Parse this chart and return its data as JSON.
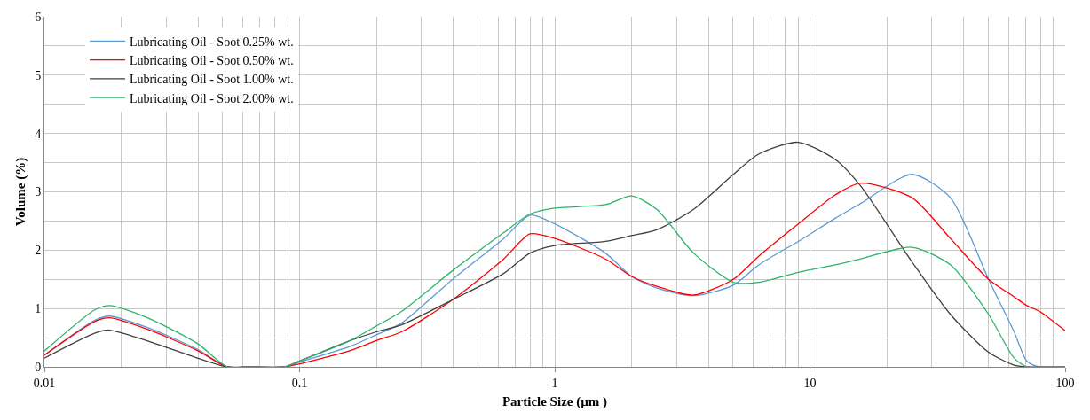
{
  "chart_data": {
    "type": "line",
    "xlabel": "Particle Size (µm )",
    "ylabel": "Volume (%)",
    "log": "x",
    "grid": true,
    "legend": "top left",
    "marker": "none",
    "line_style": "solid",
    "x": [
      0.01,
      0.0158,
      0.018,
      0.0251,
      0.0398,
      0.052,
      0.0631,
      0.087,
      0.1,
      0.158,
      0.2,
      0.251,
      0.398,
      0.631,
      0.8,
      1,
      1.58,
      2,
      2.51,
      3.5,
      5.01,
      6.31,
      9,
      12.6,
      15.8,
      25.1,
      35.5,
      50.1,
      63.1,
      70.8,
      79.4,
      100
    ],
    "xlim": [
      0.01,
      100
    ],
    "xticks": [
      0.01,
      0.1,
      1,
      10,
      100
    ],
    "ylim": [
      0,
      6
    ],
    "yticks": [
      0,
      {
        "value": 0.5,
        "label": null
      },
      1,
      {
        "value": 1.5,
        "label": null
      },
      2,
      {
        "value": 2.5,
        "label": null
      },
      3,
      {
        "value": 3.5,
        "label": null
      },
      4,
      {
        "value": 4.5,
        "label": null
      },
      5,
      {
        "value": 5.5,
        "label": null
      },
      6
    ],
    "series": [
      {
        "name": "Lubricating Oil - Soot 0.25% wt.",
        "color": "#5b9bd5",
        "values": [
          0.2,
          0.8,
          0.87,
          0.68,
          0.3,
          0,
          0,
          0,
          0.08,
          0.35,
          0.55,
          0.75,
          1.5,
          2.2,
          2.6,
          2.45,
          1.95,
          1.55,
          1.35,
          1.22,
          1.4,
          1.75,
          2.15,
          2.55,
          2.8,
          3.3,
          2.9,
          1.5,
          0.6,
          0.1,
          0,
          0
        ]
      },
      {
        "name": "Lubricating Oil - Soot 0.50% wt.",
        "color": "#ff0000",
        "values": [
          0.2,
          0.78,
          0.84,
          0.65,
          0.28,
          0,
          0,
          0,
          0.05,
          0.28,
          0.45,
          0.6,
          1.15,
          1.85,
          2.28,
          2.2,
          1.85,
          1.55,
          1.38,
          1.23,
          1.5,
          1.9,
          2.45,
          2.95,
          3.15,
          2.9,
          2.2,
          1.5,
          1.2,
          1.05,
          0.95,
          0.62
        ]
      },
      {
        "name": "Lubricating Oil - Soot 1.00% wt.",
        "color": "#404040",
        "values": [
          0.15,
          0.58,
          0.63,
          0.45,
          0.15,
          0,
          0,
          0,
          0.1,
          0.45,
          0.6,
          0.72,
          1.15,
          1.6,
          1.95,
          2.08,
          2.15,
          2.25,
          2.35,
          2.7,
          3.3,
          3.65,
          3.85,
          3.55,
          3.1,
          1.8,
          0.9,
          0.25,
          0.03,
          0,
          0,
          0
        ]
      },
      {
        "name": "Lubricating Oil - Soot 2.00% wt.",
        "color": "#2db36b",
        "values": [
          0.27,
          0.98,
          1.05,
          0.85,
          0.4,
          0,
          0,
          0,
          0.1,
          0.45,
          0.7,
          0.95,
          1.65,
          2.3,
          2.62,
          2.72,
          2.78,
          2.93,
          2.7,
          1.95,
          1.45,
          1.45,
          1.62,
          1.75,
          1.85,
          2.05,
          1.75,
          0.9,
          0.15,
          0,
          0,
          0
        ]
      }
    ]
  }
}
